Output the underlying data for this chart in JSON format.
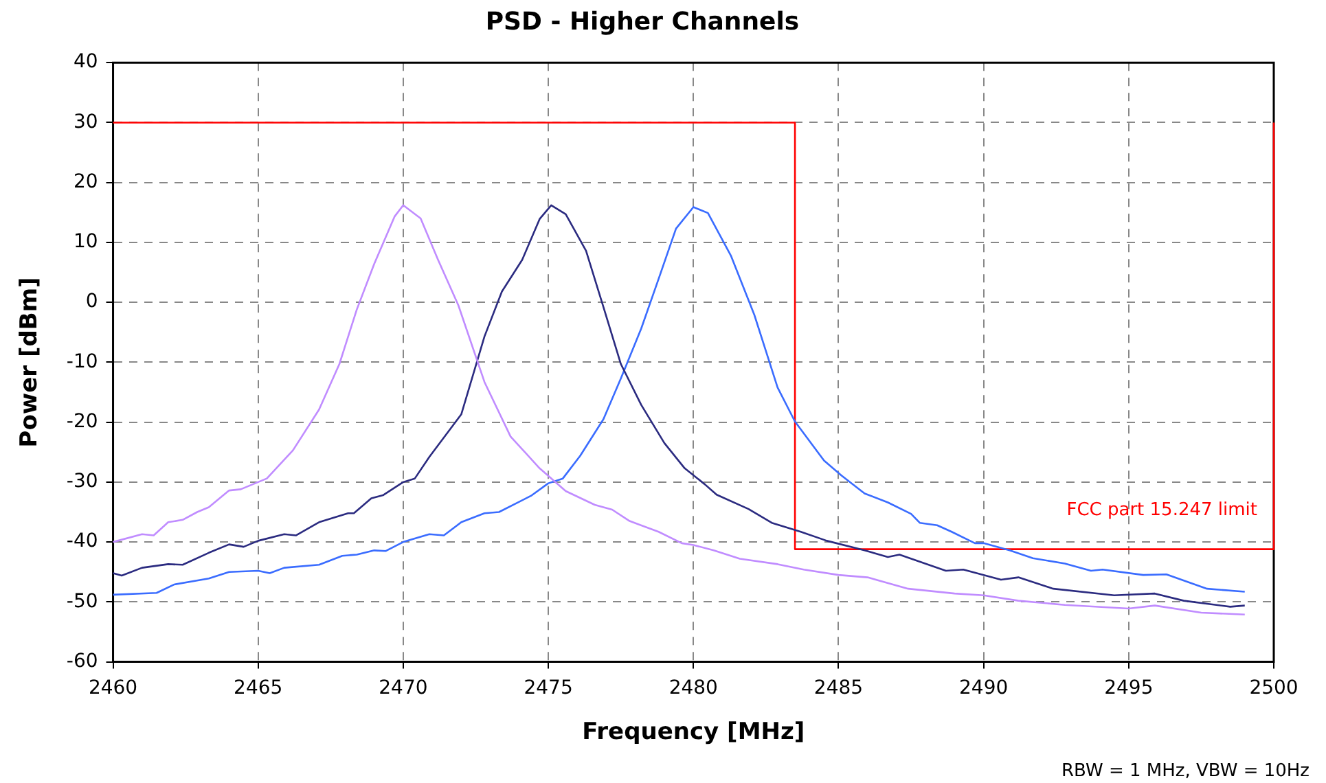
{
  "chart_data": {
    "type": "line",
    "title": "PSD - Higher Channels",
    "xlabel": "Frequency [MHz]",
    "ylabel": "Power [dBm]",
    "xlim": [
      2460,
      2500
    ],
    "xticks": [
      2460,
      2465,
      2470,
      2475,
      2480,
      2485,
      2490,
      2495,
      2500
    ],
    "ylim": [
      -60,
      40
    ],
    "yticks": [
      -60,
      -50,
      -40,
      -30,
      -20,
      -10,
      0,
      10,
      20,
      30,
      40
    ],
    "grid": true,
    "legend": false,
    "marker": "none",
    "series": [
      {
        "color": "#c08cff",
        "x": [
          2460,
          2461,
          2461.4,
          2461.9,
          2462.4,
          2462.9,
          2463.3,
          2464,
          2464.4,
          2465,
          2465.3,
          2466.2,
          2467.1,
          2467.8,
          2468.4,
          2469,
          2469.7,
          2470,
          2470.6,
          2471.2,
          2471.9,
          2472.8,
          2473.7,
          2474.7,
          2475.6,
          2476.6,
          2477.2,
          2477.8,
          2478.8,
          2479.6,
          2480,
          2480.7,
          2481.6,
          2482.9,
          2483.8,
          2485,
          2486,
          2487.4,
          2489,
          2490,
          2491.2,
          2492.8,
          2495,
          2495.9,
          2497.5,
          2499
        ],
        "values": [
          -40,
          -38.7,
          -38.9,
          -36.7,
          -36.3,
          -35,
          -34.2,
          -31.4,
          -31.2,
          -30,
          -29.4,
          -24.7,
          -17.9,
          -10.3,
          -1.2,
          6.4,
          14.3,
          16.2,
          14,
          7.1,
          -0.5,
          -13.3,
          -22.4,
          -27.7,
          -31.5,
          -33.8,
          -34.6,
          -36.5,
          -38.3,
          -40.2,
          -40.5,
          -41.4,
          -42.8,
          -43.7,
          -44.6,
          -45.5,
          -45.9,
          -47.8,
          -48.6,
          -48.9,
          -49.8,
          -50.5,
          -51.1,
          -50.6,
          -51.8,
          -52.1
        ]
      },
      {
        "color": "#2b2b80",
        "x": [
          2460,
          2460.3,
          2461,
          2461.9,
          2462.4,
          2463.3,
          2464,
          2464.5,
          2465,
          2465.9,
          2466.3,
          2467.1,
          2468.1,
          2468.3,
          2468.9,
          2469.3,
          2470,
          2470.4,
          2470.9,
          2472,
          2472.8,
          2473.4,
          2474.1,
          2474.7,
          2475.1,
          2475.6,
          2476.3,
          2476.9,
          2477.5,
          2478.2,
          2479,
          2479.7,
          2480.4,
          2480.8,
          2481.9,
          2482.7,
          2483.7,
          2484.6,
          2485.9,
          2486.7,
          2487.1,
          2488.7,
          2489.3,
          2490.6,
          2491.2,
          2492.4,
          2494.5,
          2495.9,
          2496.9,
          2498.5,
          2499
        ],
        "values": [
          -45.2,
          -45.6,
          -44.3,
          -43.7,
          -43.8,
          -41.8,
          -40.4,
          -40.8,
          -39.8,
          -38.7,
          -38.9,
          -36.7,
          -35.2,
          -35.2,
          -32.7,
          -32.2,
          -30,
          -29.4,
          -25.8,
          -18.7,
          -5.7,
          1.8,
          7.1,
          13.9,
          16.2,
          14.7,
          8.6,
          -0.8,
          -10.3,
          -17.1,
          -23.5,
          -27.7,
          -30.4,
          -32.1,
          -34.5,
          -36.8,
          -38.3,
          -39.8,
          -41.4,
          -42.5,
          -42.1,
          -44.8,
          -44.6,
          -46.3,
          -45.9,
          -47.8,
          -48.9,
          -48.6,
          -49.8,
          -50.8,
          -50.6
        ]
      },
      {
        "color": "#3a6cff",
        "x": [
          2460,
          2461.5,
          2462.1,
          2463.3,
          2464,
          2465,
          2465.4,
          2465.9,
          2467.1,
          2467.9,
          2468.4,
          2469,
          2469.4,
          2470,
          2470.9,
          2471.4,
          2472,
          2472.8,
          2473.3,
          2474.4,
          2475,
          2475.5,
          2476.1,
          2476.9,
          2477.5,
          2478.2,
          2478.8,
          2479.4,
          2480,
          2480.5,
          2481.3,
          2482.1,
          2482.9,
          2483.5,
          2484.5,
          2485.1,
          2485.9,
          2486.7,
          2487.5,
          2487.8,
          2488.4,
          2488.9,
          2489.7,
          2490,
          2490.9,
          2491.7,
          2492.8,
          2493.7,
          2494.1,
          2495.5,
          2496.3,
          2497.7,
          2499
        ],
        "values": [
          -48.8,
          -48.5,
          -47.1,
          -46.1,
          -45,
          -44.8,
          -45.2,
          -44.3,
          -43.8,
          -42.3,
          -42.1,
          -41.4,
          -41.5,
          -40,
          -38.7,
          -38.9,
          -36.7,
          -35.2,
          -35,
          -32.3,
          -30.2,
          -29.4,
          -25.6,
          -19.5,
          -12.7,
          -4.4,
          3.9,
          12.3,
          15.9,
          14.9,
          7.7,
          -2.1,
          -14.2,
          -19.9,
          -26.4,
          -28.9,
          -31.9,
          -33.4,
          -35.3,
          -36.8,
          -37.2,
          -38.3,
          -40.2,
          -40.2,
          -41.4,
          -42.7,
          -43.6,
          -44.8,
          -44.6,
          -45.5,
          -45.4,
          -47.8,
          -48.3
        ]
      },
      {
        "color": "#ff0000",
        "x": [
          2460,
          2483.5,
          2483.5,
          2500,
          2500
        ],
        "values": [
          30,
          30,
          -41.2,
          -41.2,
          30
        ]
      }
    ],
    "annotations": [
      "FCC part 15.247 limit",
      "RBW = 1 MHz, VBW = 10Hz"
    ]
  }
}
